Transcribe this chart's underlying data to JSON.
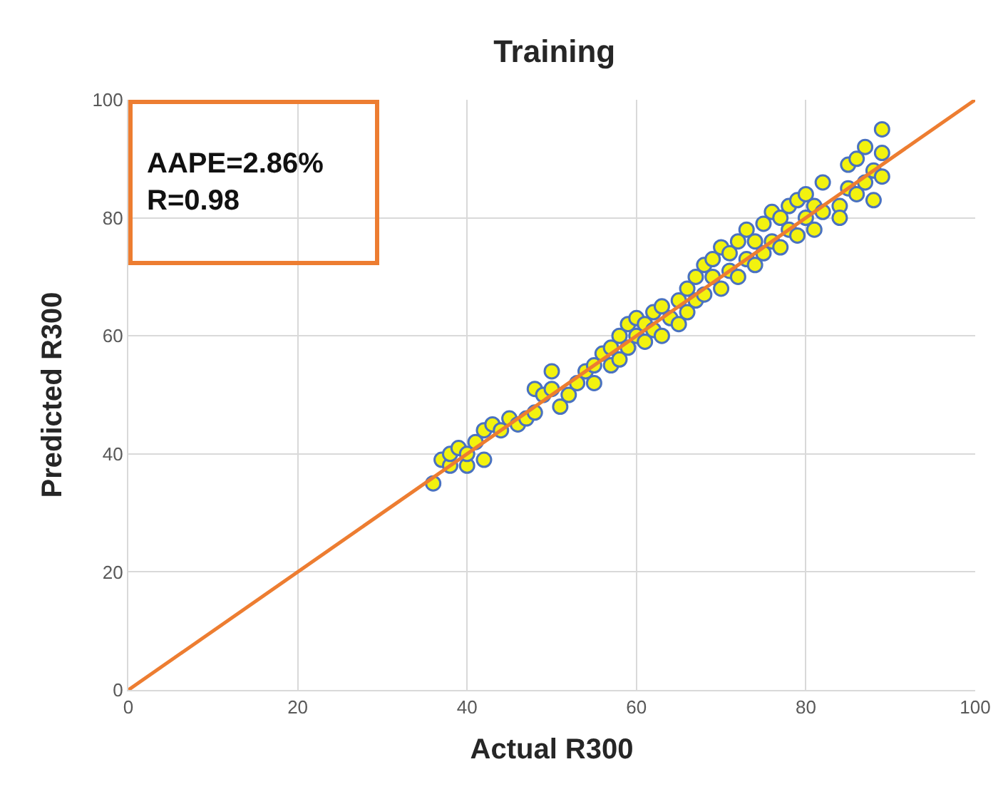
{
  "chart_data": {
    "type": "scatter",
    "title": "Training",
    "xlabel": "Actual R300",
    "ylabel": "Predicted R300",
    "xlim": [
      0,
      100
    ],
    "ylim": [
      0,
      100
    ],
    "xticks": [
      0,
      20,
      40,
      60,
      80,
      100
    ],
    "yticks": [
      0,
      20,
      40,
      60,
      80,
      100
    ],
    "grid": true,
    "marker": "circle",
    "annotations": [
      "AAPE=2.86%\nR=0.98"
    ],
    "series": [
      {
        "color": "#f2f20f",
        "x": [
          36,
          37,
          38,
          38,
          39,
          40,
          40,
          41,
          42,
          42,
          43,
          44,
          45,
          46,
          47,
          48,
          48,
          49,
          50,
          50,
          51,
          52,
          53,
          54,
          55,
          55,
          56,
          57,
          57,
          58,
          58,
          59,
          59,
          60,
          60,
          61,
          61,
          62,
          62,
          63,
          63,
          64,
          65,
          65,
          66,
          66,
          67,
          67,
          68,
          68,
          69,
          69,
          70,
          70,
          71,
          71,
          72,
          72,
          73,
          73,
          74,
          74,
          75,
          75,
          76,
          76,
          77,
          77,
          78,
          78,
          79,
          79,
          80,
          80,
          81,
          81,
          82,
          82,
          84,
          84,
          85,
          85,
          86,
          86,
          87,
          87,
          88,
          88,
          89,
          89,
          89
        ],
        "values": [
          35,
          39,
          38,
          40,
          41,
          38,
          40,
          42,
          39,
          44,
          45,
          44,
          46,
          45,
          46,
          47,
          51,
          50,
          51,
          54,
          48,
          50,
          52,
          54,
          55,
          52,
          57,
          55,
          58,
          56,
          60,
          58,
          62,
          60,
          63,
          59,
          62,
          61,
          64,
          60,
          65,
          63,
          62,
          66,
          64,
          68,
          66,
          70,
          67,
          72,
          70,
          73,
          68,
          75,
          71,
          74,
          70,
          76,
          73,
          78,
          72,
          76,
          74,
          79,
          76,
          81,
          75,
          80,
          78,
          82,
          77,
          83,
          80,
          84,
          78,
          82,
          81,
          86,
          82,
          80,
          85,
          89,
          84,
          90,
          86,
          92,
          88,
          83,
          87,
          95,
          91
        ]
      },
      {
        "type": "line",
        "color": "#ed7d31",
        "x": [
          0,
          100
        ],
        "values": [
          0,
          100
        ],
        "marker": "none"
      }
    ]
  }
}
